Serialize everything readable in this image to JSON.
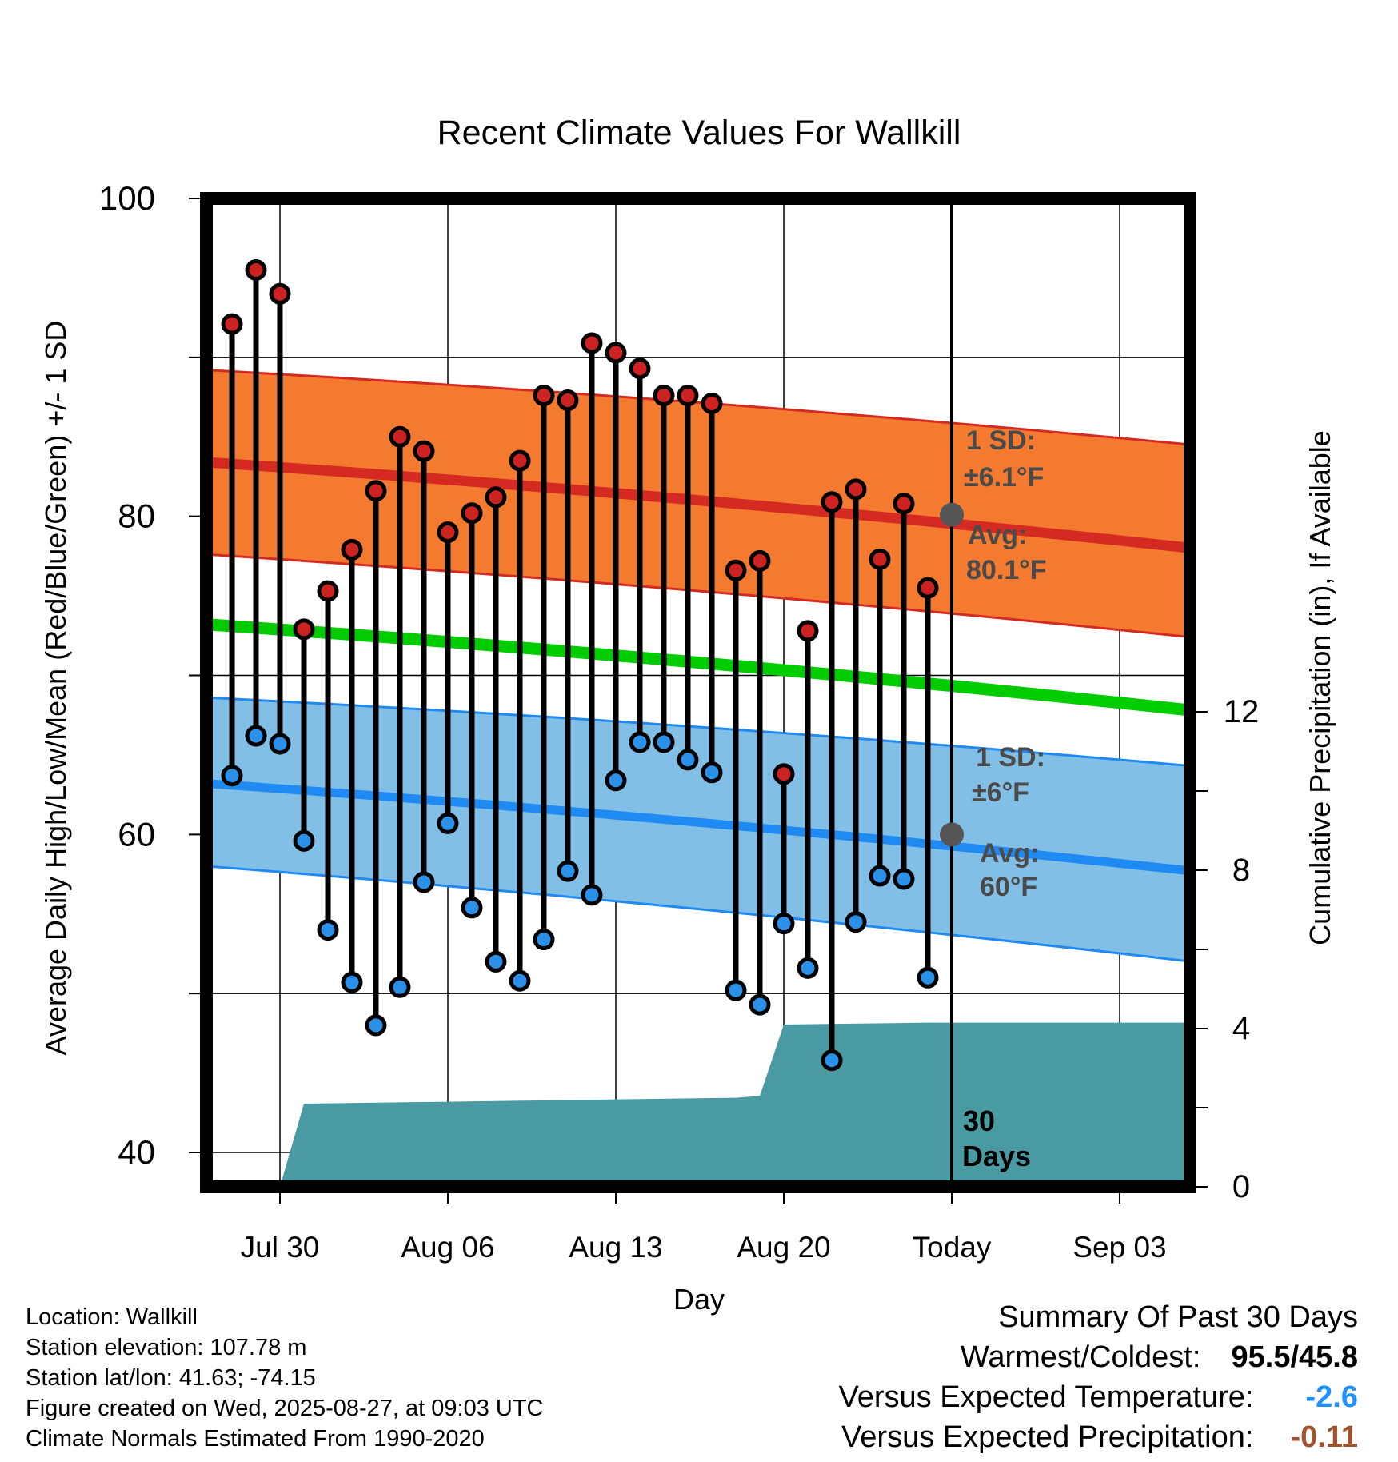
{
  "chart_data": {
    "type": "line",
    "title": "Recent Climate Values For Wallkill",
    "xlabel": "Day",
    "ylabel": "Average Daily High/Low/Mean (Red/Blue/Green) +/- 1 SD",
    "y2label": "Cumulative Precipitation (in), If Available",
    "ylim": [
      38,
      100
    ],
    "y_ticks": [
      "100",
      "80",
      "60",
      "40"
    ],
    "y2lim": [
      0,
      30
    ],
    "y2_ticks": [
      "12",
      "8",
      "4",
      "0"
    ],
    "x_ticks": [
      "Jul 30",
      "Aug 06",
      "Aug 13",
      "Aug 20",
      "Today",
      "Sep 03"
    ],
    "days": [
      "Jul 28",
      "Jul 29",
      "Jul 30",
      "Jul 31",
      "Aug 01",
      "Aug 02",
      "Aug 03",
      "Aug 04",
      "Aug 05",
      "Aug 06",
      "Aug 07",
      "Aug 08",
      "Aug 09",
      "Aug 10",
      "Aug 11",
      "Aug 12",
      "Aug 13",
      "Aug 14",
      "Aug 15",
      "Aug 16",
      "Aug 17",
      "Aug 18",
      "Aug 19",
      "Aug 20",
      "Aug 21",
      "Aug 22",
      "Aug 23",
      "Aug 24",
      "Aug 25",
      "Aug 26"
    ],
    "observed_high": [
      92.1,
      95.5,
      94.0,
      72.9,
      75.3,
      77.9,
      81.6,
      85.0,
      84.1,
      79.0,
      80.2,
      81.2,
      83.5,
      87.6,
      87.3,
      90.9,
      90.3,
      89.3,
      87.6,
      87.6,
      87.1,
      76.6,
      77.2,
      63.8,
      72.8,
      80.9,
      81.7,
      77.3,
      80.8,
      75.5
    ],
    "observed_low": [
      63.7,
      66.2,
      65.7,
      59.6,
      54.0,
      50.7,
      48.0,
      50.4,
      57.0,
      60.7,
      55.4,
      52.0,
      50.8,
      53.4,
      57.7,
      56.2,
      63.4,
      65.8,
      65.8,
      64.7,
      63.9,
      50.2,
      49.3,
      54.4,
      51.6,
      45.8,
      54.5,
      57.4,
      57.2,
      51.0
    ],
    "normal_x": [
      "Jul 27",
      "Sep 06"
    ],
    "normal_high": [
      83.4,
      78.0
    ],
    "normal_high_sd_upper": [
      89.2,
      84.5
    ],
    "normal_high_sd_lower": [
      77.6,
      72.4
    ],
    "normal_mean": [
      73.2,
      67.8
    ],
    "normal_low": [
      63.2,
      57.7
    ],
    "normal_low_sd_upper": [
      68.6,
      64.3
    ],
    "normal_low_sd_lower": [
      58.0,
      52.0
    ],
    "precip_x": [
      "Jul 27",
      "Jul 29",
      "Jul 30",
      "Jul 31",
      "Aug 06",
      "Aug 12",
      "Aug 18",
      "Aug 19",
      "Aug 20",
      "Aug 26",
      "Sep 06"
    ],
    "precip_cum": [
      0,
      0,
      0,
      2.1,
      2.15,
      2.2,
      2.25,
      2.3,
      4.1,
      4.15,
      4.15
    ],
    "high_sd_label": [
      "1 SD:",
      "±6.1°F"
    ],
    "high_avg_label": [
      "Avg:",
      "80.1°F"
    ],
    "low_sd_label": [
      "1 SD:",
      "±6°F"
    ],
    "low_avg_label": [
      "Avg:",
      "60°F"
    ],
    "today_label": [
      "30",
      "Days"
    ],
    "colors": {
      "high_band": "#f47a30",
      "high_line": "#d42a22",
      "mean_line": "#00cc00",
      "low_band": "#82bfe6",
      "low_line": "#1f8af2",
      "precip": "#4a9aa4",
      "high_dot": "#cc2222",
      "low_dot": "#2a90e8"
    }
  },
  "info": {
    "location": "Location: Wallkill",
    "elevation": "Station elevation: 107.78 m",
    "latlon": "Station lat/lon: 41.63; -74.15",
    "created": "Figure created on Wed, 2025-08-27, at 09:03 UTC",
    "normals": "Climate Normals Estimated From 1990-2020"
  },
  "summary": {
    "title": "Summary Of Past 30 Days",
    "warm_label": "Warmest/Coldest:",
    "warm_value": "95.5/45.8",
    "temp_label": "Versus Expected Temperature:",
    "temp_value": "-2.6",
    "temp_color": "#1e90ff",
    "precip_label": "Versus Expected Precipitation:",
    "precip_value": "-0.11",
    "precip_color": "#a0522d"
  }
}
